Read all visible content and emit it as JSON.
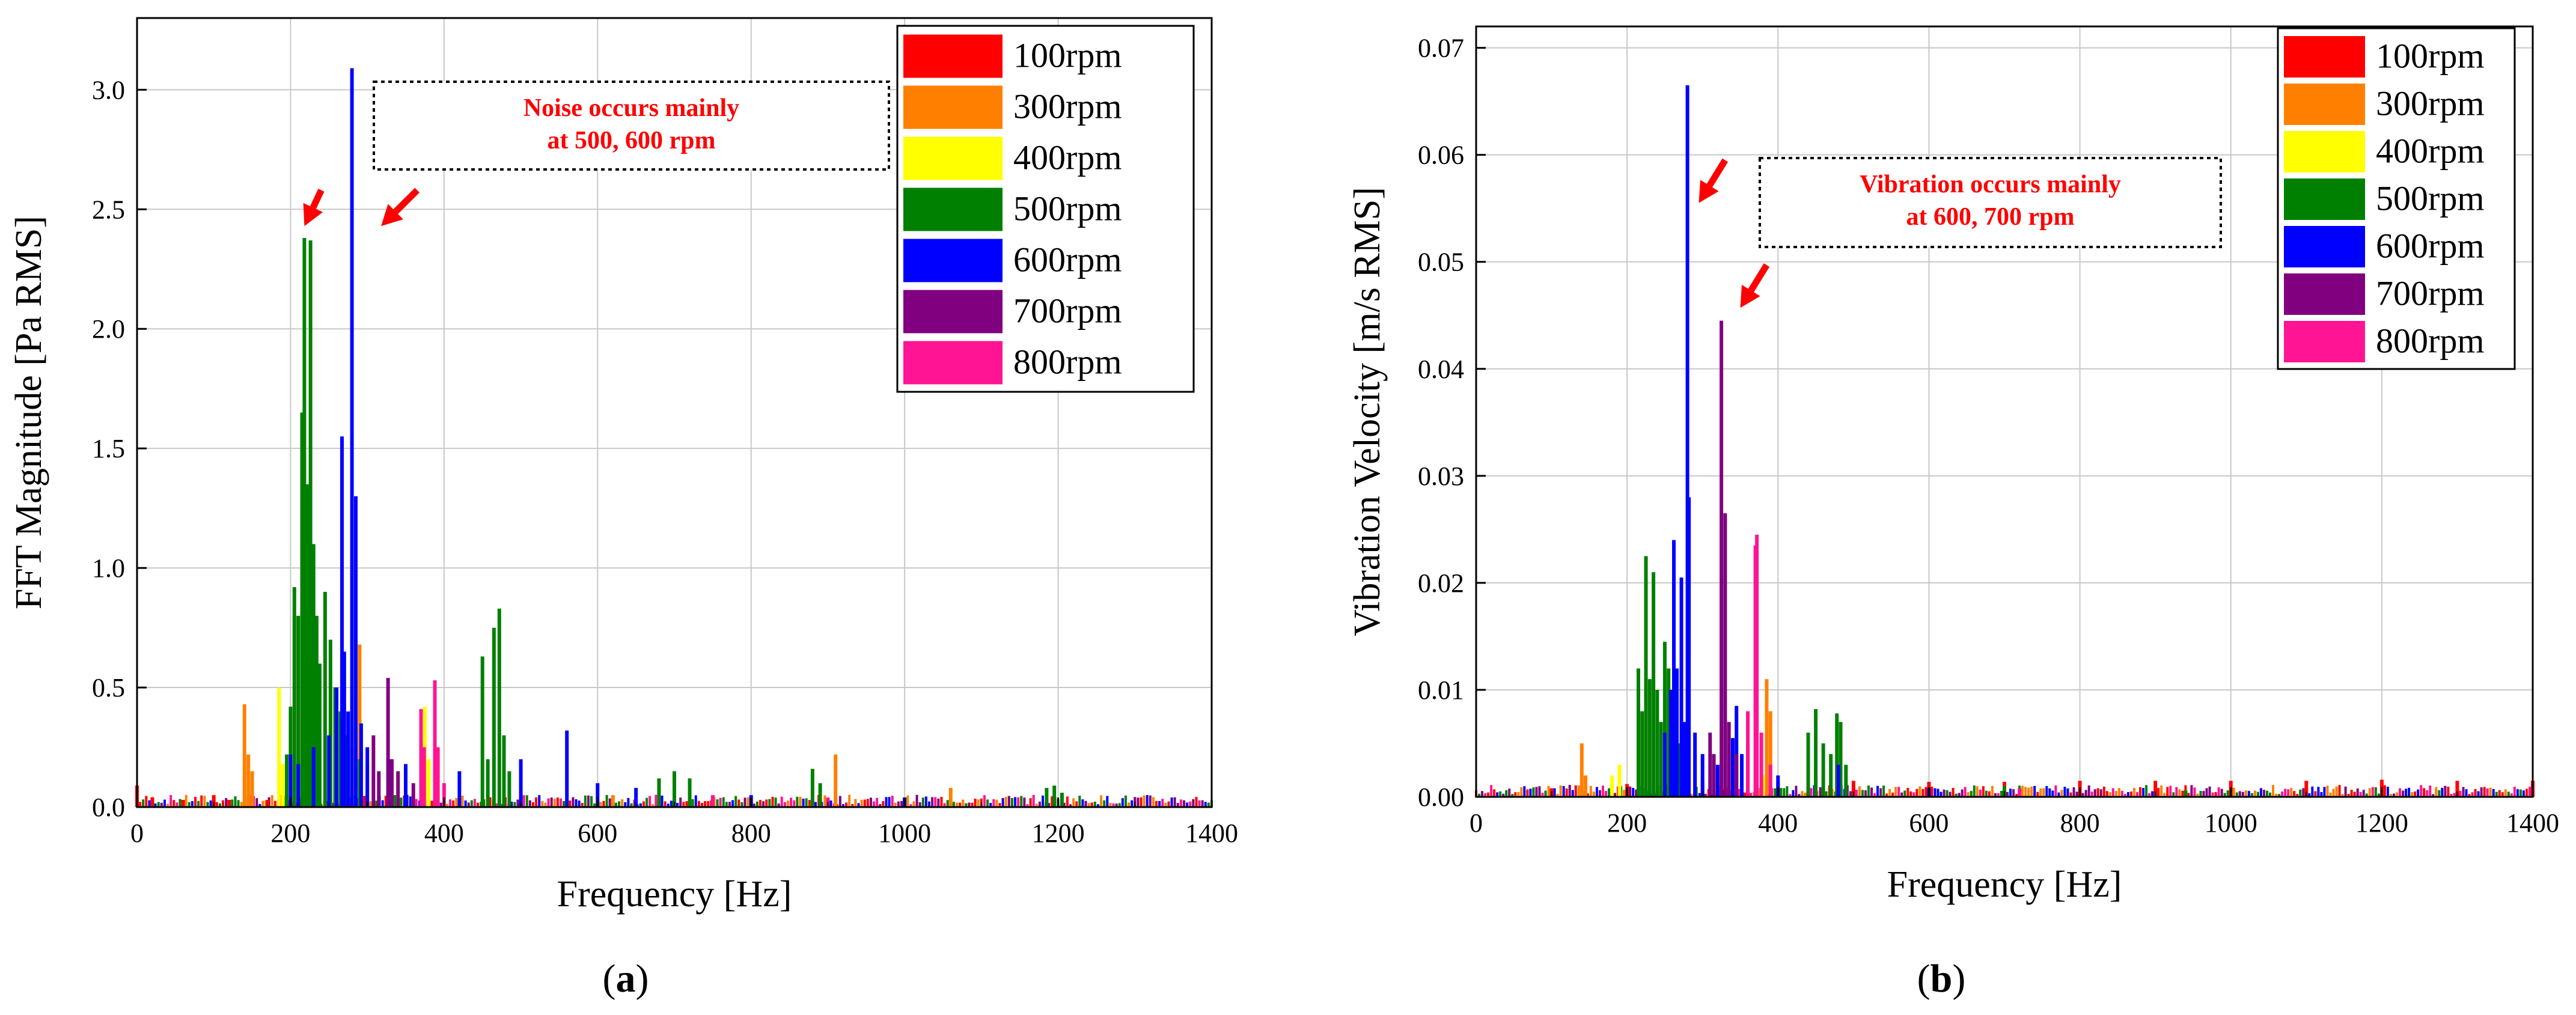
{
  "colors": {
    "100rpm": "#ff0000",
    "300rpm": "#ff8000",
    "400rpm": "#ffff00",
    "500rpm": "#008000",
    "600rpm": "#0000ff",
    "700rpm": "#800080",
    "800rpm": "#ff1493",
    "annotation": "#ff0000",
    "axis": "#000000",
    "grid": "#c8c8c8"
  },
  "chart_data": [
    {
      "type": "bar",
      "panel_label": "(a)",
      "panel_letter": "a",
      "title": "",
      "xlabel": "Frequency [Hz]",
      "ylabel": "FFT Magnitude [Pa RMS]",
      "xlim": [
        0,
        1400
      ],
      "ylim": [
        0,
        3.3
      ],
      "xticks": [
        0,
        200,
        400,
        600,
        800,
        1000,
        1200,
        1400
      ],
      "xtick_labels": [
        "0",
        "200",
        "400",
        "600",
        "800",
        "1000",
        "1200",
        "1400"
      ],
      "yticks": [
        0,
        0.5,
        1.0,
        1.5,
        2.0,
        2.5,
        3.0
      ],
      "ytick_labels": [
        "0.0",
        "0.5",
        "1.0",
        "1.5",
        "2.0",
        "2.5",
        "3.0"
      ],
      "grid": true,
      "legend_position": "top-right",
      "annotation": {
        "lines": [
          "Noise occurs mainly",
          "at 500, 600 rpm"
        ]
      },
      "arrows": [
        {
          "tail": [
            240,
            2.58
          ],
          "head": [
            218,
            2.43
          ]
        },
        {
          "tail": [
            365,
            2.58
          ],
          "head": [
            318,
            2.43
          ]
        }
      ],
      "series": [
        {
          "name": "100rpm",
          "peaks": [
            [
              0,
              0.09
            ],
            [
              20,
              0.04
            ],
            [
              60,
              0.03
            ],
            [
              100,
              0.05
            ],
            [
              120,
              0.03
            ],
            [
              170,
              0.03
            ],
            [
              500,
              0.02
            ],
            [
              700,
              0.02
            ],
            [
              900,
              0.02
            ]
          ]
        },
        {
          "name": "300rpm",
          "peaks": [
            [
              140,
              0.43
            ],
            [
              145,
              0.22
            ],
            [
              150,
              0.15
            ],
            [
              290,
              0.68
            ],
            [
              300,
              0.18
            ],
            [
              620,
              0.05
            ],
            [
              910,
              0.22
            ],
            [
              1060,
              0.08
            ]
          ]
        },
        {
          "name": "400rpm",
          "peaks": [
            [
              185,
              0.5
            ],
            [
              190,
              0.18
            ],
            [
              375,
              0.42
            ],
            [
              380,
              0.2
            ]
          ]
        },
        {
          "name": "500rpm",
          "peaks": [
            [
              195,
              0.22
            ],
            [
              200,
              0.42
            ],
            [
              205,
              0.92
            ],
            [
              210,
              0.8
            ],
            [
              215,
              1.65
            ],
            [
              218,
              2.38
            ],
            [
              222,
              1.35
            ],
            [
              226,
              2.37
            ],
            [
              230,
              1.1
            ],
            [
              234,
              0.8
            ],
            [
              238,
              0.6
            ],
            [
              245,
              0.9
            ],
            [
              252,
              0.7
            ],
            [
              258,
              0.5
            ],
            [
              265,
              0.4
            ],
            [
              272,
              0.3
            ],
            [
              280,
              0.25
            ],
            [
              290,
              0.2
            ],
            [
              450,
              0.63
            ],
            [
              457,
              0.2
            ],
            [
              465,
              0.75
            ],
            [
              472,
              0.83
            ],
            [
              478,
              0.3
            ],
            [
              485,
              0.15
            ],
            [
              680,
              0.12
            ],
            [
              700,
              0.15
            ],
            [
              720,
              0.12
            ],
            [
              880,
              0.16
            ],
            [
              890,
              0.1
            ],
            [
              1185,
              0.08
            ],
            [
              1195,
              0.09
            ],
            [
              1205,
              0.06
            ]
          ]
        },
        {
          "name": "600rpm",
          "peaks": [
            [
              200,
              0.22
            ],
            [
              210,
              0.18
            ],
            [
              230,
              0.25
            ],
            [
              250,
              0.3
            ],
            [
              260,
              0.5
            ],
            [
              267,
              1.55
            ],
            [
              270,
              0.65
            ],
            [
              275,
              0.4
            ],
            [
              280,
              3.09
            ],
            [
              285,
              1.3
            ],
            [
              292,
              0.35
            ],
            [
              300,
              0.25
            ],
            [
              330,
              0.2
            ],
            [
              350,
              0.18
            ],
            [
              420,
              0.15
            ],
            [
              500,
              0.2
            ],
            [
              560,
              0.32
            ],
            [
              600,
              0.1
            ],
            [
              650,
              0.08
            ],
            [
              800,
              0.05
            ],
            [
              1000,
              0.04
            ]
          ]
        },
        {
          "name": "700rpm",
          "peaks": [
            [
              308,
              0.3
            ],
            [
              315,
              0.15
            ],
            [
              327,
              0.54
            ],
            [
              332,
              0.2
            ],
            [
              340,
              0.15
            ],
            [
              360,
              0.1
            ]
          ]
        },
        {
          "name": "800rpm",
          "peaks": [
            [
              370,
              0.41
            ],
            [
              374,
              0.25
            ],
            [
              388,
              0.53
            ],
            [
              392,
              0.25
            ],
            [
              400,
              0.1
            ],
            [
              750,
              0.05
            ],
            [
              900,
              0.04
            ]
          ]
        }
      ]
    },
    {
      "type": "bar",
      "panel_label": "(b)",
      "panel_letter": "b",
      "title": "",
      "xlabel": "Frequency [Hz]",
      "ylabel": "Vibration Velocity [m/s RMS]",
      "xlim": [
        0,
        1400
      ],
      "ylim": [
        0,
        0.072
      ],
      "xticks": [
        0,
        200,
        400,
        600,
        800,
        1000,
        1200,
        1400
      ],
      "xtick_labels": [
        "0",
        "200",
        "400",
        "600",
        "800",
        "1000",
        "1200",
        "1400"
      ],
      "yticks": [
        0,
        0.01,
        0.02,
        0.03,
        0.04,
        0.05,
        0.06,
        0.07
      ],
      "ytick_labels": [
        "0.00",
        "0.01",
        "0.02",
        "0.03",
        "0.04",
        "0.05",
        "0.06",
        "0.07"
      ],
      "grid": true,
      "legend_position": "top-right",
      "annotation": {
        "lines": [
          "Vibration occurs mainly",
          "at 600, 700 rpm"
        ]
      },
      "arrows": [
        {
          "tail": [
            330,
            0.0595
          ],
          "head": [
            295,
            0.0555
          ]
        },
        {
          "tail": [
            385,
            0.0497
          ],
          "head": [
            350,
            0.0457
          ]
        }
      ],
      "series": [
        {
          "name": "100rpm",
          "peaks": [
            [
              100,
              0.0008
            ],
            [
              200,
              0.0012
            ],
            [
              300,
              0.0015
            ],
            [
              400,
              0.0013
            ],
            [
              500,
              0.0015
            ],
            [
              600,
              0.0014
            ],
            [
              700,
              0.0014
            ],
            [
              800,
              0.0015
            ],
            [
              900,
              0.0015
            ],
            [
              1000,
              0.0015
            ],
            [
              1100,
              0.0015
            ],
            [
              1200,
              0.0016
            ],
            [
              1300,
              0.0015
            ],
            [
              1400,
              0.0015
            ]
          ]
        },
        {
          "name": "300rpm",
          "peaks": [
            [
              140,
              0.005
            ],
            [
              145,
              0.002
            ],
            [
              290,
              0.004
            ],
            [
              385,
              0.011
            ],
            [
              390,
              0.008
            ],
            [
              450,
              0.002
            ]
          ]
        },
        {
          "name": "400rpm",
          "peaks": [
            [
              180,
              0.002
            ],
            [
              190,
              0.003
            ],
            [
              270,
              0.0025
            ],
            [
              380,
              0.002
            ]
          ]
        },
        {
          "name": "500rpm",
          "peaks": [
            [
              215,
              0.012
            ],
            [
              220,
              0.008
            ],
            [
              225,
              0.0225
            ],
            [
              230,
              0.011
            ],
            [
              235,
              0.021
            ],
            [
              240,
              0.01
            ],
            [
              245,
              0.007
            ],
            [
              250,
              0.0145
            ],
            [
              255,
              0.012
            ],
            [
              262,
              0.006
            ],
            [
              270,
              0.005
            ],
            [
              440,
              0.006
            ],
            [
              450,
              0.0082
            ],
            [
              460,
              0.005
            ],
            [
              470,
              0.004
            ],
            [
              478,
              0.0078
            ],
            [
              483,
              0.007
            ],
            [
              490,
              0.003
            ],
            [
              700,
              0.001
            ],
            [
              940,
              0.0006
            ]
          ]
        },
        {
          "name": "600rpm",
          "peaks": [
            [
              250,
              0.006
            ],
            [
              258,
              0.01
            ],
            [
              262,
              0.024
            ],
            [
              266,
              0.012
            ],
            [
              272,
              0.0205
            ],
            [
              276,
              0.007
            ],
            [
              280,
              0.0665
            ],
            [
              282,
              0.028
            ],
            [
              290,
              0.006
            ],
            [
              300,
              0.004
            ],
            [
              320,
              0.003
            ],
            [
              340,
              0.0055
            ],
            [
              345,
              0.0085
            ],
            [
              352,
              0.004
            ],
            [
              360,
              0.005
            ],
            [
              400,
              0.002
            ],
            [
              480,
              0.003
            ],
            [
              600,
              0.0008
            ]
          ]
        },
        {
          "name": "700rpm",
          "peaks": [
            [
              310,
              0.006
            ],
            [
              315,
              0.004
            ],
            [
              325,
              0.0445
            ],
            [
              330,
              0.0265
            ],
            [
              335,
              0.007
            ],
            [
              345,
              0.004
            ]
          ]
        },
        {
          "name": "800rpm",
          "peaks": [
            [
              360,
              0.008
            ],
            [
              370,
              0.0235
            ],
            [
              372,
              0.0245
            ],
            [
              378,
              0.006
            ],
            [
              390,
              0.003
            ],
            [
              720,
              0.0008
            ]
          ]
        }
      ]
    }
  ]
}
